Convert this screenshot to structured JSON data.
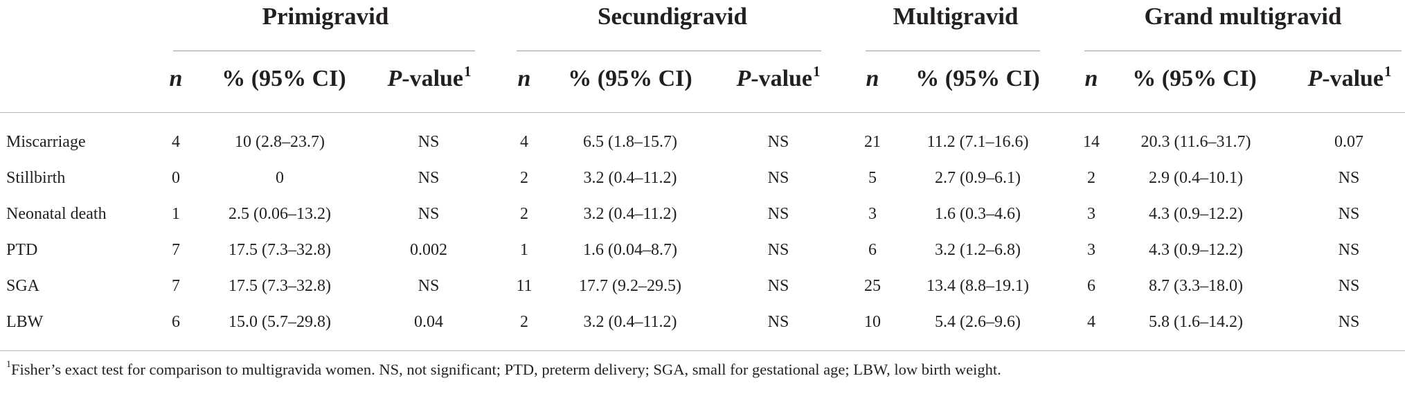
{
  "groups": [
    "Primigravid",
    "Secundigravid",
    "Multigravid",
    "Grand multigravid"
  ],
  "subheaders": {
    "n": "n",
    "pct": "% (95% CI)",
    "p_italic": "P",
    "p_rest": "-value",
    "p_sup": "1"
  },
  "rows": [
    {
      "label": "Miscarriage",
      "cells": [
        "4",
        "10 (2.8–23.7)",
        "NS",
        "4",
        "6.5 (1.8–15.7)",
        "NS",
        "21",
        "11.2 (7.1–16.6)",
        "14",
        "20.3 (11.6–31.7)",
        "0.07"
      ]
    },
    {
      "label": "Stillbirth",
      "cells": [
        "0",
        "0",
        "NS",
        "2",
        "3.2 (0.4–11.2)",
        "NS",
        "5",
        "2.7 (0.9–6.1)",
        "2",
        "2.9 (0.4–10.1)",
        "NS"
      ]
    },
    {
      "label": "Neonatal death",
      "cells": [
        "1",
        "2.5 (0.06–13.2)",
        "NS",
        "2",
        "3.2 (0.4–11.2)",
        "NS",
        "3",
        "1.6 (0.3–4.6)",
        "3",
        "4.3 (0.9–12.2)",
        "NS"
      ]
    },
    {
      "label": "PTD",
      "cells": [
        "7",
        "17.5 (7.3–32.8)",
        "0.002",
        "1",
        "1.6 (0.04–8.7)",
        "NS",
        "6",
        "3.2 (1.2–6.8)",
        "3",
        "4.3 (0.9–12.2)",
        "NS"
      ]
    },
    {
      "label": "SGA",
      "cells": [
        "7",
        "17.5 (7.3–32.8)",
        "NS",
        "11",
        "17.7 (9.2–29.5)",
        "NS",
        "25",
        "13.4 (8.8–19.1)",
        "6",
        "8.7 (3.3–18.0)",
        "NS"
      ]
    },
    {
      "label": "LBW",
      "cells": [
        "6",
        "15.0 (5.7–29.8)",
        "0.04",
        "2",
        "3.2 (0.4–11.2)",
        "NS",
        "10",
        "5.4 (2.6–9.6)",
        "4",
        "5.8 (1.6–14.2)",
        "NS"
      ]
    }
  ],
  "footnote": {
    "sup": "1",
    "text": "Fisher’s exact test for comparison to multigravida women. NS, not significant; PTD, preterm delivery; SGA, small for gestational age; LBW, low birth weight."
  }
}
